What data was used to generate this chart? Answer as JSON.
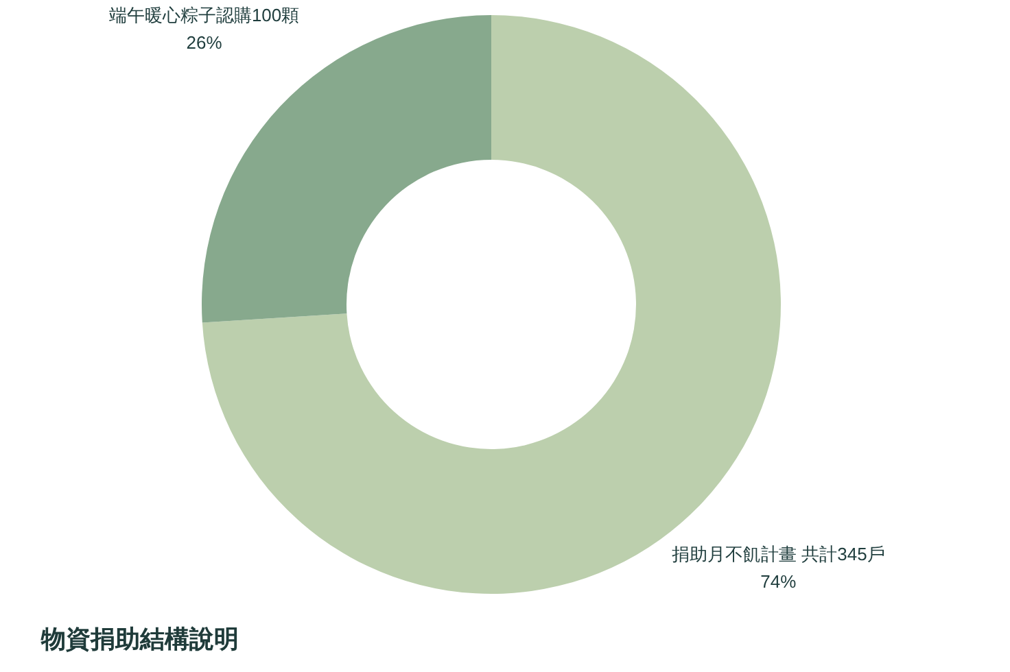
{
  "chart_data": {
    "type": "donut",
    "title": "物資捐助結構說明",
    "categories": [
      "捐助月不飢計畫 共計345戶",
      "端午暖心粽子認購100顆"
    ],
    "values": [
      74,
      26
    ],
    "colors": [
      "#bccfad",
      "#87a98d"
    ],
    "value_labels": [
      "74%",
      "26%"
    ]
  }
}
